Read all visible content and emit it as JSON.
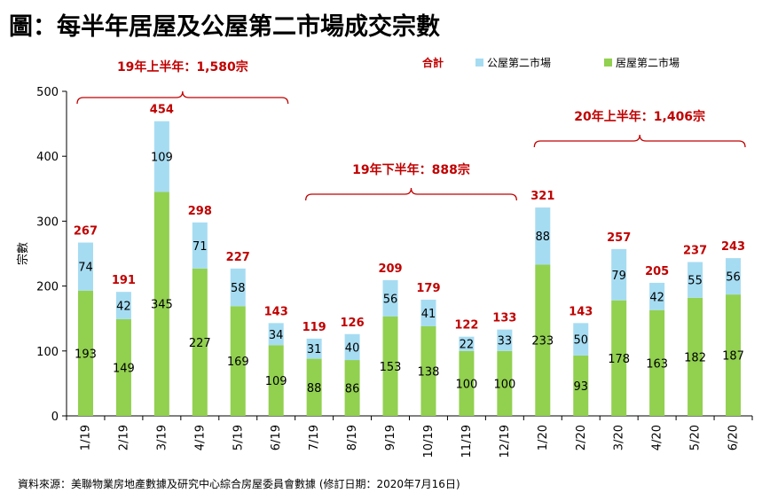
{
  "page": {
    "title": "圖：每半年居屋及公屋第二市場成交宗數",
    "source": "資料來源：美聯物業房地產數據及研究中心綜合房屋委員會數據 (修訂日期：2020年7月16日)"
  },
  "chart_data": {
    "type": "bar",
    "stacked": true,
    "categories": [
      "1/19",
      "2/19",
      "3/19",
      "4/19",
      "5/19",
      "6/19",
      "7/19",
      "8/19",
      "9/19",
      "10/19",
      "11/19",
      "12/19",
      "1/20",
      "2/20",
      "3/20",
      "4/20",
      "5/20",
      "6/20"
    ],
    "series": [
      {
        "name": "居屋第二市場",
        "color": "#92d050",
        "values": [
          193,
          149,
          345,
          227,
          169,
          109,
          88,
          86,
          153,
          138,
          100,
          100,
          233,
          93,
          178,
          163,
          182,
          187
        ]
      },
      {
        "name": "公屋第二市場",
        "color": "#a6dcf2",
        "values": [
          74,
          42,
          109,
          71,
          58,
          34,
          31,
          40,
          56,
          41,
          22,
          33,
          88,
          50,
          79,
          42,
          55,
          56
        ]
      }
    ],
    "totals": {
      "name": "合計",
      "color": "#c00000",
      "values": [
        267,
        191,
        454,
        298,
        227,
        143,
        119,
        126,
        209,
        179,
        122,
        133,
        321,
        143,
        257,
        205,
        237,
        243
      ]
    },
    "ylabel": "宗數",
    "ylim": [
      0,
      500
    ],
    "yticks": [
      0,
      100,
      200,
      300,
      400,
      500
    ],
    "grid": false,
    "legend_position": "top",
    "annotations": [
      {
        "text": "19年上半年：1,580宗",
        "from": 0,
        "to": 5
      },
      {
        "text": "19年下半年：888宗",
        "from": 6,
        "to": 11
      },
      {
        "text": "20年上半年：1,406宗",
        "from": 12,
        "to": 17
      }
    ]
  }
}
